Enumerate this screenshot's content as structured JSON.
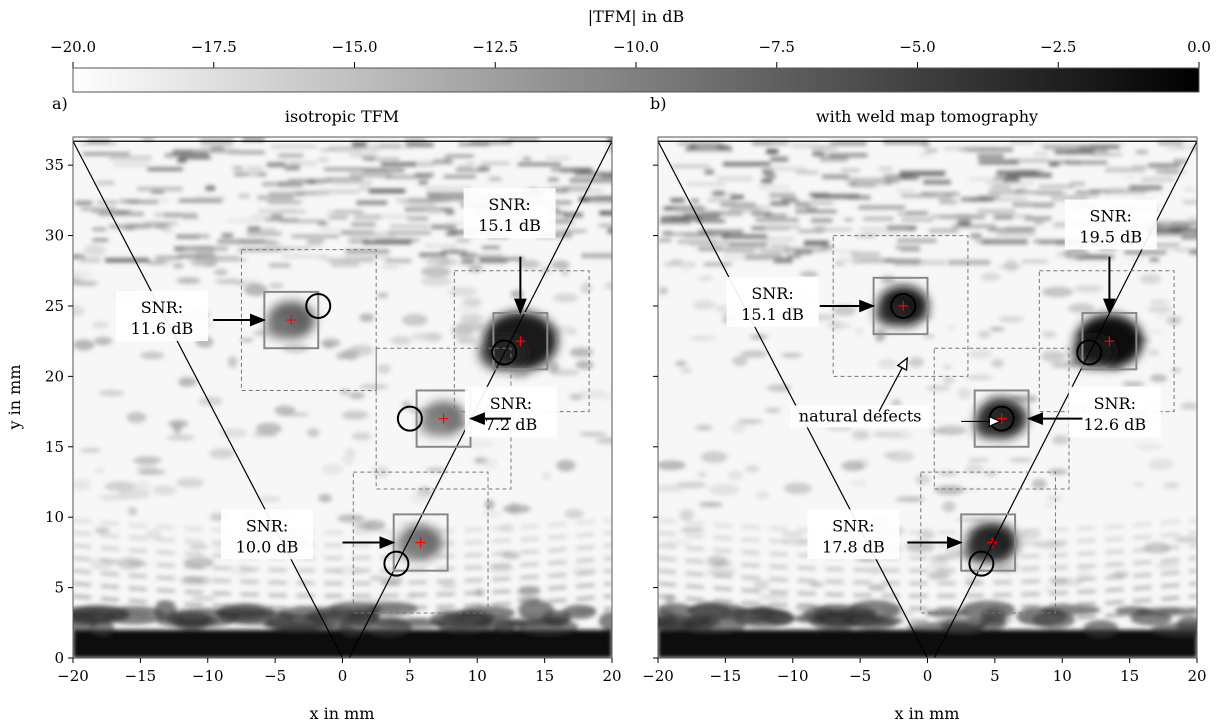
{
  "colorbar": {
    "label": "|TFM| in dB",
    "ticks": [
      "−20.0",
      "−17.5",
      "−15.0",
      "−12.5",
      "−10.0",
      "−7.5",
      "−5.0",
      "−2.5",
      "0.0"
    ],
    "range": [
      -20,
      0
    ],
    "colormap": "gray_r"
  },
  "chart_data": [
    {
      "type": "heatmap",
      "panel_letter": "a)",
      "title": "isotropic TFM",
      "xlabel": "x in mm",
      "ylabel": "y in mm",
      "xlim": [
        -20,
        20
      ],
      "ylim": [
        0,
        37
      ],
      "xticks": [
        "−20",
        "−15",
        "−10",
        "−5",
        "0",
        "5",
        "10",
        "15",
        "20"
      ],
      "yticks": [
        "0",
        "5",
        "10",
        "15",
        "20",
        "25",
        "30",
        "35"
      ],
      "defects": [
        {
          "x": -3.8,
          "y": 24.0,
          "intensity": 0.55,
          "radius": 1.4
        },
        {
          "x": 13.2,
          "y": 22.5,
          "intensity": 0.95,
          "radius": 2.2
        },
        {
          "x": 7.5,
          "y": 17.0,
          "intensity": 0.45,
          "radius": 1.3
        },
        {
          "x": 5.8,
          "y": 8.2,
          "intensity": 0.5,
          "radius": 1.3
        }
      ],
      "circles": [
        {
          "x": -1.8,
          "y": 25.0
        },
        {
          "x": 12.0,
          "y": 21.7
        },
        {
          "x": 5.0,
          "y": 17.0
        },
        {
          "x": 4.0,
          "y": 6.7
        }
      ],
      "boxes": [
        {
          "x0": -7.5,
          "x1": 2.5,
          "y0": 19.0,
          "y1": 29.0,
          "style": "dashed"
        },
        {
          "x0": 8.3,
          "x1": 18.3,
          "y0": 17.5,
          "y1": 27.5,
          "style": "dashed"
        },
        {
          "x0": 2.5,
          "x1": 12.5,
          "y0": 12.0,
          "y1": 22.0,
          "style": "dashed"
        },
        {
          "x0": 0.8,
          "x1": 10.8,
          "y0": 3.2,
          "y1": 13.2,
          "style": "dashed"
        },
        {
          "x0": -5.8,
          "x1": -1.8,
          "y0": 22.0,
          "y1": 26.0,
          "style": "solid"
        },
        {
          "x0": 11.2,
          "x1": 15.2,
          "y0": 20.5,
          "y1": 24.5,
          "style": "solid"
        },
        {
          "x0": 5.5,
          "x1": 9.5,
          "y0": 15.0,
          "y1": 19.0,
          "style": "solid"
        },
        {
          "x0": 3.8,
          "x1": 7.8,
          "y0": 6.2,
          "y1": 10.2,
          "style": "solid"
        }
      ],
      "annotations": [
        {
          "line1": "SNR:",
          "line2": "11.6 dB",
          "tx": -13.4,
          "ty": 24.5,
          "ax0": -9.6,
          "ay0": 24.0,
          "ax1": -5.8,
          "ay1": 24.0
        },
        {
          "line1": "SNR:",
          "line2": "15.1 dB",
          "tx": 12.4,
          "ty": 31.8,
          "ax0": 13.2,
          "ay0": 28.5,
          "ax1": 13.2,
          "ay1": 24.5
        },
        {
          "line1": "SNR:",
          "line2": "7.2 dB",
          "tx": 12.5,
          "ty": 17.7,
          "ax0": 12.5,
          "ay0": 17.0,
          "ax1": 9.5,
          "ay1": 17.0
        },
        {
          "line1": "SNR:",
          "line2": "10.0 dB",
          "tx": -5.6,
          "ty": 9.0,
          "ax0": 0.0,
          "ay0": 8.2,
          "ax1": 3.8,
          "ay1": 8.2
        }
      ],
      "secondary_text": []
    },
    {
      "type": "heatmap",
      "panel_letter": "b)",
      "title": "with weld map tomography",
      "xlabel": "x in mm",
      "ylabel": "",
      "xlim": [
        -20,
        20
      ],
      "ylim": [
        0,
        37
      ],
      "xticks": [
        "−20",
        "−15",
        "−10",
        "−5",
        "0",
        "5",
        "10",
        "15",
        "20"
      ],
      "yticks": [],
      "defects": [
        {
          "x": -1.8,
          "y": 25.0,
          "intensity": 0.95,
          "radius": 1.5
        },
        {
          "x": 13.5,
          "y": 22.5,
          "intensity": 1.0,
          "radius": 2.0
        },
        {
          "x": 5.5,
          "y": 17.0,
          "intensity": 0.9,
          "radius": 1.5
        },
        {
          "x": 4.8,
          "y": 8.2,
          "intensity": 0.9,
          "radius": 1.5
        }
      ],
      "circles": [
        {
          "x": -1.8,
          "y": 25.0
        },
        {
          "x": 12.0,
          "y": 21.7
        },
        {
          "x": 5.5,
          "y": 17.0
        },
        {
          "x": 4.0,
          "y": 6.7
        }
      ],
      "boxes": [
        {
          "x0": -7.0,
          "x1": 3.0,
          "y0": 20.0,
          "y1": 30.0,
          "style": "dashed"
        },
        {
          "x0": 8.3,
          "x1": 18.3,
          "y0": 17.5,
          "y1": 27.5,
          "style": "dashed"
        },
        {
          "x0": 0.5,
          "x1": 10.5,
          "y0": 12.0,
          "y1": 22.0,
          "style": "dashed"
        },
        {
          "x0": -0.5,
          "x1": 9.5,
          "y0": 3.2,
          "y1": 13.2,
          "style": "dashed"
        },
        {
          "x0": -4.0,
          "x1": 0.0,
          "y0": 23.0,
          "y1": 27.0,
          "style": "solid"
        },
        {
          "x0": 11.5,
          "x1": 15.5,
          "y0": 20.5,
          "y1": 24.5,
          "style": "solid"
        },
        {
          "x0": 3.5,
          "x1": 7.5,
          "y0": 15.0,
          "y1": 19.0,
          "style": "solid"
        },
        {
          "x0": 2.5,
          "x1": 6.5,
          "y0": 6.2,
          "y1": 10.2,
          "style": "solid"
        }
      ],
      "annotations": [
        {
          "line1": "SNR:",
          "line2": "15.1 dB",
          "tx": -11.5,
          "ty": 25.5,
          "ax0": -8.0,
          "ay0": 25.0,
          "ax1": -4.0,
          "ay1": 25.0
        },
        {
          "line1": "SNR:",
          "line2": "19.5 dB",
          "tx": 13.6,
          "ty": 31.0,
          "ax0": 13.5,
          "ay0": 28.5,
          "ax1": 13.5,
          "ay1": 24.5
        },
        {
          "line1": "SNR:",
          "line2": "12.6 dB",
          "tx": 13.9,
          "ty": 17.7,
          "ax0": 11.5,
          "ay0": 17.0,
          "ax1": 7.5,
          "ay1": 17.0
        },
        {
          "line1": "SNR:",
          "line2": "17.8 dB",
          "tx": -5.5,
          "ty": 9.0,
          "ax0": -1.5,
          "ay0": 8.2,
          "ax1": 2.5,
          "ay1": 8.2
        }
      ],
      "secondary_text": [
        {
          "text": "natural defects",
          "tx": -5.0,
          "ty": 16.8
        }
      ],
      "hollow_arrows": [
        {
          "x0": -3.6,
          "y0": 17.5,
          "x1": -1.5,
          "y1": 21.3
        },
        {
          "x0": 2.5,
          "y0": 16.8,
          "x1": 5.4,
          "y1": 16.8
        }
      ]
    }
  ]
}
